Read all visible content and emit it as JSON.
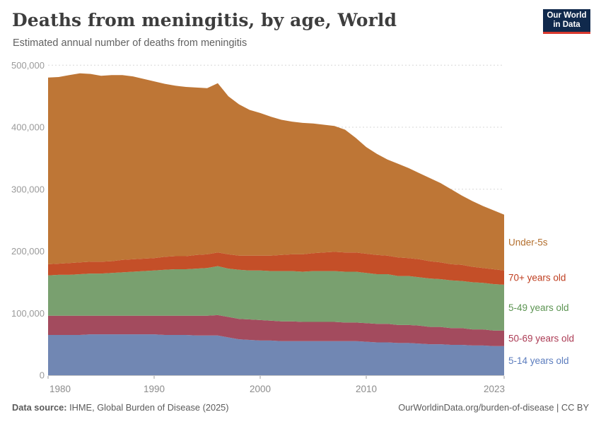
{
  "header": {
    "title": "Deaths from meningitis, by age, World",
    "subtitle": "Estimated annual number of deaths from meningitis"
  },
  "logo": {
    "line1": "Our World",
    "line2": "in Data",
    "bg": "#10294c",
    "accent": "#d9392f"
  },
  "footer": {
    "source_label": "Data source:",
    "source_text": " IHME, Global Burden of Disease (2025)",
    "right_text": "OurWorldinData.org/burden-of-disease | CC BY"
  },
  "chart_data": {
    "type": "area",
    "stacked": true,
    "title": "Deaths from meningitis, by age, World",
    "subtitle": "Estimated annual number of deaths from meningitis",
    "xlabel": "",
    "ylabel": "",
    "grid": "dashed-horizontal",
    "legend_position": "right",
    "ylim": [
      0,
      500000
    ],
    "x": [
      1980,
      1981,
      1982,
      1983,
      1984,
      1985,
      1986,
      1987,
      1988,
      1989,
      1990,
      1991,
      1992,
      1993,
      1994,
      1995,
      1996,
      1997,
      1998,
      1999,
      2000,
      2001,
      2002,
      2003,
      2004,
      2005,
      2006,
      2007,
      2008,
      2009,
      2010,
      2011,
      2012,
      2013,
      2014,
      2015,
      2016,
      2017,
      2018,
      2019,
      2020,
      2021,
      2022,
      2023
    ],
    "xticks": [
      {
        "value": 1980,
        "label": "1980"
      },
      {
        "value": 1990,
        "label": "1990"
      },
      {
        "value": 2000,
        "label": "2000"
      },
      {
        "value": 2010,
        "label": "2010"
      },
      {
        "value": 2023,
        "label": "2023"
      }
    ],
    "yticks": [
      {
        "value": 0,
        "label": "0"
      },
      {
        "value": 100000,
        "label": "100,000"
      },
      {
        "value": 200000,
        "label": "200,000"
      },
      {
        "value": 300000,
        "label": "300,000"
      },
      {
        "value": 400000,
        "label": "400,000"
      },
      {
        "value": 500000,
        "label": "500,000"
      }
    ],
    "series": [
      {
        "name": "5-14 years old",
        "color": "#7187b3",
        "label_color": "#5c7dbe",
        "values": [
          65000,
          65000,
          65000,
          65000,
          66000,
          66000,
          66000,
          66000,
          66000,
          66000,
          66000,
          65000,
          65000,
          65000,
          64000,
          64000,
          64000,
          61000,
          58000,
          57000,
          56000,
          56000,
          55000,
          55000,
          55000,
          55000,
          55000,
          55000,
          55000,
          55000,
          54000,
          53000,
          53000,
          52000,
          52000,
          51000,
          50000,
          50000,
          49000,
          49000,
          48000,
          48000,
          47000,
          47000
        ]
      },
      {
        "name": "50-69 years old",
        "color": "#a34b5e",
        "label_color": "#ac3c55",
        "values": [
          31000,
          31000,
          31000,
          31000,
          30000,
          30000,
          30000,
          30000,
          30000,
          30000,
          30000,
          31000,
          31000,
          31000,
          32000,
          32000,
          33000,
          33000,
          33000,
          33000,
          33000,
          32000,
          32000,
          32000,
          31000,
          31000,
          31000,
          31000,
          30000,
          30000,
          30000,
          30000,
          30000,
          29000,
          29000,
          29000,
          28000,
          28000,
          27000,
          27000,
          26000,
          26000,
          25000,
          25000
        ]
      },
      {
        "name": "5-49 years old",
        "color": "#79a06f",
        "label_color": "#5c9452",
        "values": [
          65000,
          66000,
          66000,
          67000,
          68000,
          68000,
          69000,
          70000,
          71000,
          72000,
          73000,
          74000,
          75000,
          75000,
          76000,
          77000,
          79000,
          78000,
          79000,
          79000,
          80000,
          80000,
          81000,
          81000,
          81000,
          82000,
          82000,
          82000,
          82000,
          82000,
          81000,
          80000,
          80000,
          79000,
          79000,
          78000,
          78000,
          77000,
          77000,
          76000,
          76000,
          75000,
          75000,
          74000
        ]
      },
      {
        "name": "70+ years old",
        "color": "#c44f28",
        "label_color": "#bf3e20",
        "values": [
          18000,
          18000,
          19000,
          19000,
          19000,
          19000,
          19000,
          20000,
          20000,
          20000,
          20000,
          21000,
          21000,
          21000,
          22000,
          22000,
          22000,
          23000,
          23000,
          24000,
          24000,
          25000,
          26000,
          27000,
          28000,
          29000,
          30000,
          31000,
          31000,
          31000,
          31000,
          31000,
          30000,
          30000,
          29000,
          29000,
          28000,
          27000,
          26000,
          26000,
          25000,
          24000,
          24000,
          23000
        ]
      },
      {
        "name": "Under-5s",
        "color": "#be7636",
        "label_color": "#b4702f",
        "values": [
          301000,
          301000,
          303000,
          305000,
          303000,
          300000,
          300000,
          298000,
          295000,
          290000,
          285000,
          279000,
          275000,
          273000,
          270000,
          268000,
          273000,
          255000,
          244000,
          235000,
          230000,
          224000,
          218000,
          214000,
          212000,
          209000,
          206000,
          203000,
          198000,
          185000,
          172000,
          163000,
          155000,
          151000,
          145000,
          139000,
          134000,
          128000,
          121000,
          112000,
          106000,
          100000,
          95000,
          90000
        ]
      }
    ]
  }
}
